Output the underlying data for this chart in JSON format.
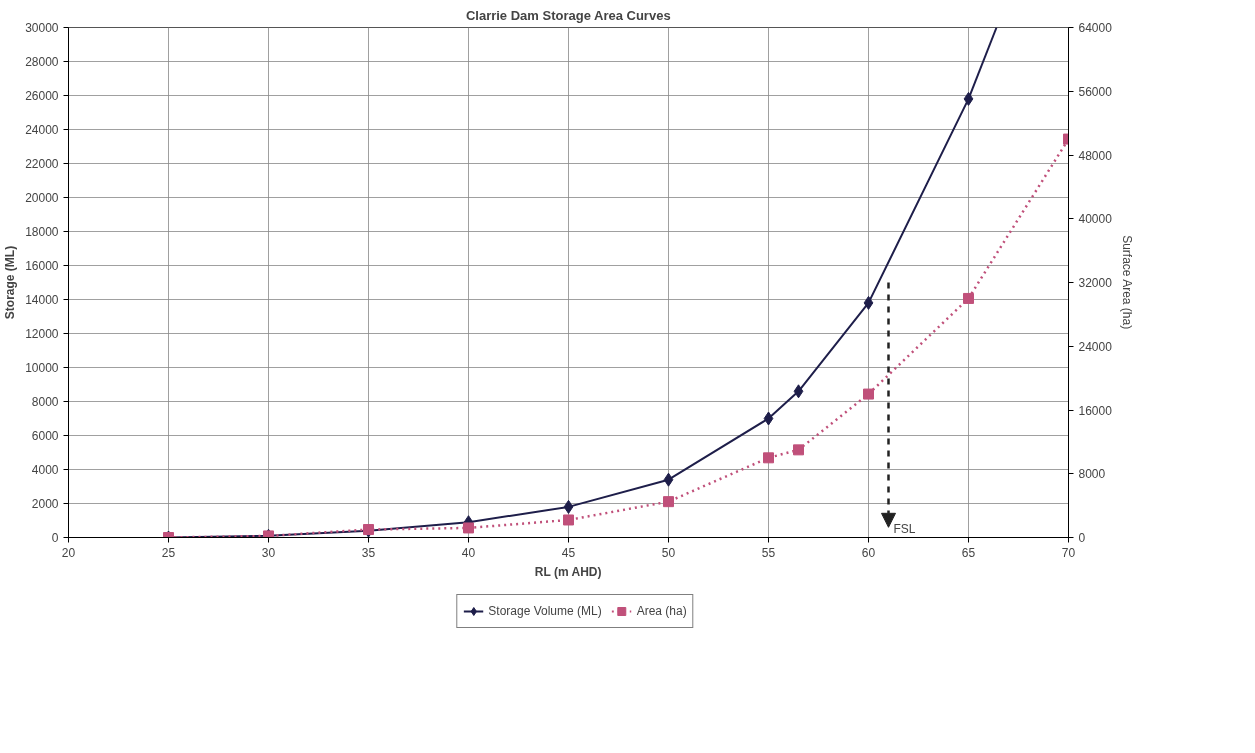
{
  "chart_data": {
    "type": "line",
    "title": "Clarrie Dam Storage Area Curves",
    "xlabel": "RL (m AHD)",
    "ylabel": "Storage (ML)",
    "y2label": "Surface Area (ha)",
    "xlim": [
      20,
      70
    ],
    "xticks": [
      20,
      25,
      30,
      35,
      40,
      45,
      50,
      55,
      60,
      65,
      70
    ],
    "ylim": [
      0,
      30000
    ],
    "yticks": [
      0,
      2000,
      4000,
      6000,
      8000,
      10000,
      12000,
      14000,
      16000,
      18000,
      20000,
      22000,
      24000,
      26000,
      28000,
      30000
    ],
    "y2lim": [
      0,
      64000
    ],
    "y2ticks": [
      0,
      8000,
      16000,
      24000,
      32000,
      40000,
      48000,
      56000,
      64000
    ],
    "grid": true,
    "legend": "bottom",
    "series": [
      {
        "name": "Storage Volume (ML)",
        "color": "#1e1e4a",
        "marker": "diamond",
        "line_style": "solid",
        "x": [
          25,
          30,
          35,
          40,
          45,
          50,
          55,
          56.5,
          60,
          65
        ],
        "values": [
          0,
          100,
          400,
          900,
          1800,
          3400,
          7000,
          8600,
          13800,
          25800
        ]
      },
      {
        "color": "#1e1e4a",
        "marker": "none",
        "line_style": "solid",
        "x": [
          65,
          66.4
        ],
        "values": [
          25800,
          30000
        ]
      },
      {
        "name": "Area (ha)",
        "color": "#c0507a",
        "marker": "square",
        "line_style": "dotted",
        "axis": "y2",
        "x": [
          25,
          30,
          35,
          40,
          45,
          50,
          55,
          56.5,
          60,
          65,
          70
        ],
        "values": [
          0,
          200,
          1000,
          1200,
          2200,
          4500,
          10000,
          11000,
          18000,
          30000,
          50000
        ]
      }
    ],
    "annotations": [
      "FSL"
    ]
  }
}
